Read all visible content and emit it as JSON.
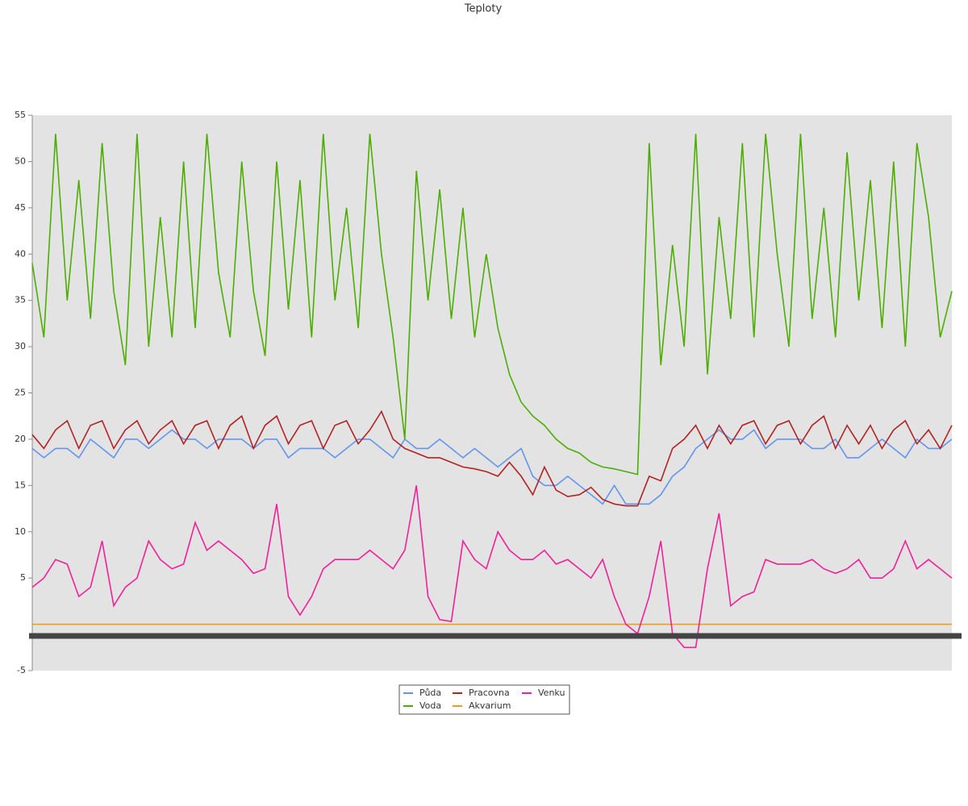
{
  "chart_data": {
    "type": "line",
    "title": "Teploty",
    "ylim": [
      -5,
      55
    ],
    "yticks": [
      -5,
      5,
      10,
      15,
      20,
      25,
      30,
      35,
      40,
      45,
      50,
      55
    ],
    "series": [
      {
        "name": "Půda",
        "color": "#6495ed",
        "values": [
          19,
          18,
          19,
          19,
          18,
          20,
          19,
          18,
          20,
          20,
          19,
          20,
          21,
          20,
          20,
          19,
          20,
          20,
          20,
          19,
          20,
          20,
          18,
          19,
          19,
          19,
          18,
          19,
          20,
          20,
          19,
          18,
          20,
          19,
          19,
          20,
          19,
          18,
          19,
          18,
          17,
          18,
          19,
          16,
          15,
          15,
          16,
          15,
          14,
          13,
          15,
          13,
          13,
          13,
          14,
          16,
          17,
          19,
          20,
          21,
          20,
          20,
          21,
          19,
          20,
          20,
          20,
          19,
          19,
          20,
          18,
          18,
          19,
          20,
          19,
          18,
          20,
          19,
          19,
          20
        ]
      },
      {
        "name": "Voda",
        "color": "#4cae00",
        "values": [
          39,
          31,
          53,
          35,
          48,
          33,
          52,
          36,
          28,
          53,
          30,
          44,
          31,
          50,
          32,
          53,
          38,
          31,
          50,
          36,
          29,
          50,
          34,
          48,
          31,
          53,
          35,
          45,
          32,
          53,
          40,
          31,
          20,
          49,
          35,
          47,
          33,
          45,
          31,
          40,
          32,
          27,
          24,
          22.5,
          21.5,
          20,
          19,
          18.5,
          17.5,
          17,
          16.8,
          16.5,
          16.2,
          52,
          28,
          41,
          30,
          53,
          27,
          44,
          33,
          52,
          31,
          53,
          40,
          30,
          53,
          33,
          45,
          31,
          51,
          35,
          48,
          32,
          50,
          30,
          52,
          44,
          31,
          36
        ]
      },
      {
        "name": "Pracovna",
        "color": "#b22222",
        "values": [
          20.5,
          19,
          21,
          22,
          19,
          21.5,
          22,
          19,
          21,
          22,
          19.5,
          21,
          22,
          19.5,
          21.5,
          22,
          19,
          21.5,
          22.5,
          19,
          21.5,
          22.5,
          19.5,
          21.5,
          22,
          19,
          21.5,
          22,
          19.5,
          21,
          23,
          20,
          19,
          18.5,
          18,
          18,
          17.5,
          17,
          16.8,
          16.5,
          16,
          17.5,
          16,
          14,
          17,
          14.5,
          13.8,
          14,
          14.8,
          13.5,
          13,
          12.8,
          12.8,
          16,
          15.5,
          19,
          20,
          21.5,
          19,
          21.5,
          19.5,
          21.5,
          22,
          19.5,
          21.5,
          22,
          19.5,
          21.5,
          22.5,
          19,
          21.5,
          19.5,
          21.5,
          19,
          21,
          22,
          19.5,
          21,
          19,
          21.5
        ]
      },
      {
        "name": "Akvarium",
        "color": "#e8a020",
        "values": [
          0,
          0
        ]
      },
      {
        "name": "Venku",
        "color": "#f0209a",
        "values": [
          4,
          5,
          7,
          6.5,
          3,
          4,
          9,
          2,
          4,
          5,
          9,
          7,
          6,
          6.5,
          11,
          8,
          9,
          8,
          7,
          5.5,
          6,
          13,
          3,
          1,
          3,
          6,
          7,
          7,
          7,
          8,
          7,
          6,
          8,
          15,
          3,
          0.5,
          0.3,
          9,
          7,
          6,
          10,
          8,
          7,
          7,
          8,
          6.5,
          7,
          6,
          5,
          7,
          3,
          0,
          -1,
          3,
          9,
          -1,
          -2.5,
          -2.5,
          6,
          12,
          2,
          3,
          3.5,
          7,
          6.5,
          6.5,
          6.5,
          7,
          6,
          5.5,
          6,
          7,
          5,
          5,
          6,
          9,
          6,
          7,
          6,
          5
        ]
      }
    ]
  }
}
